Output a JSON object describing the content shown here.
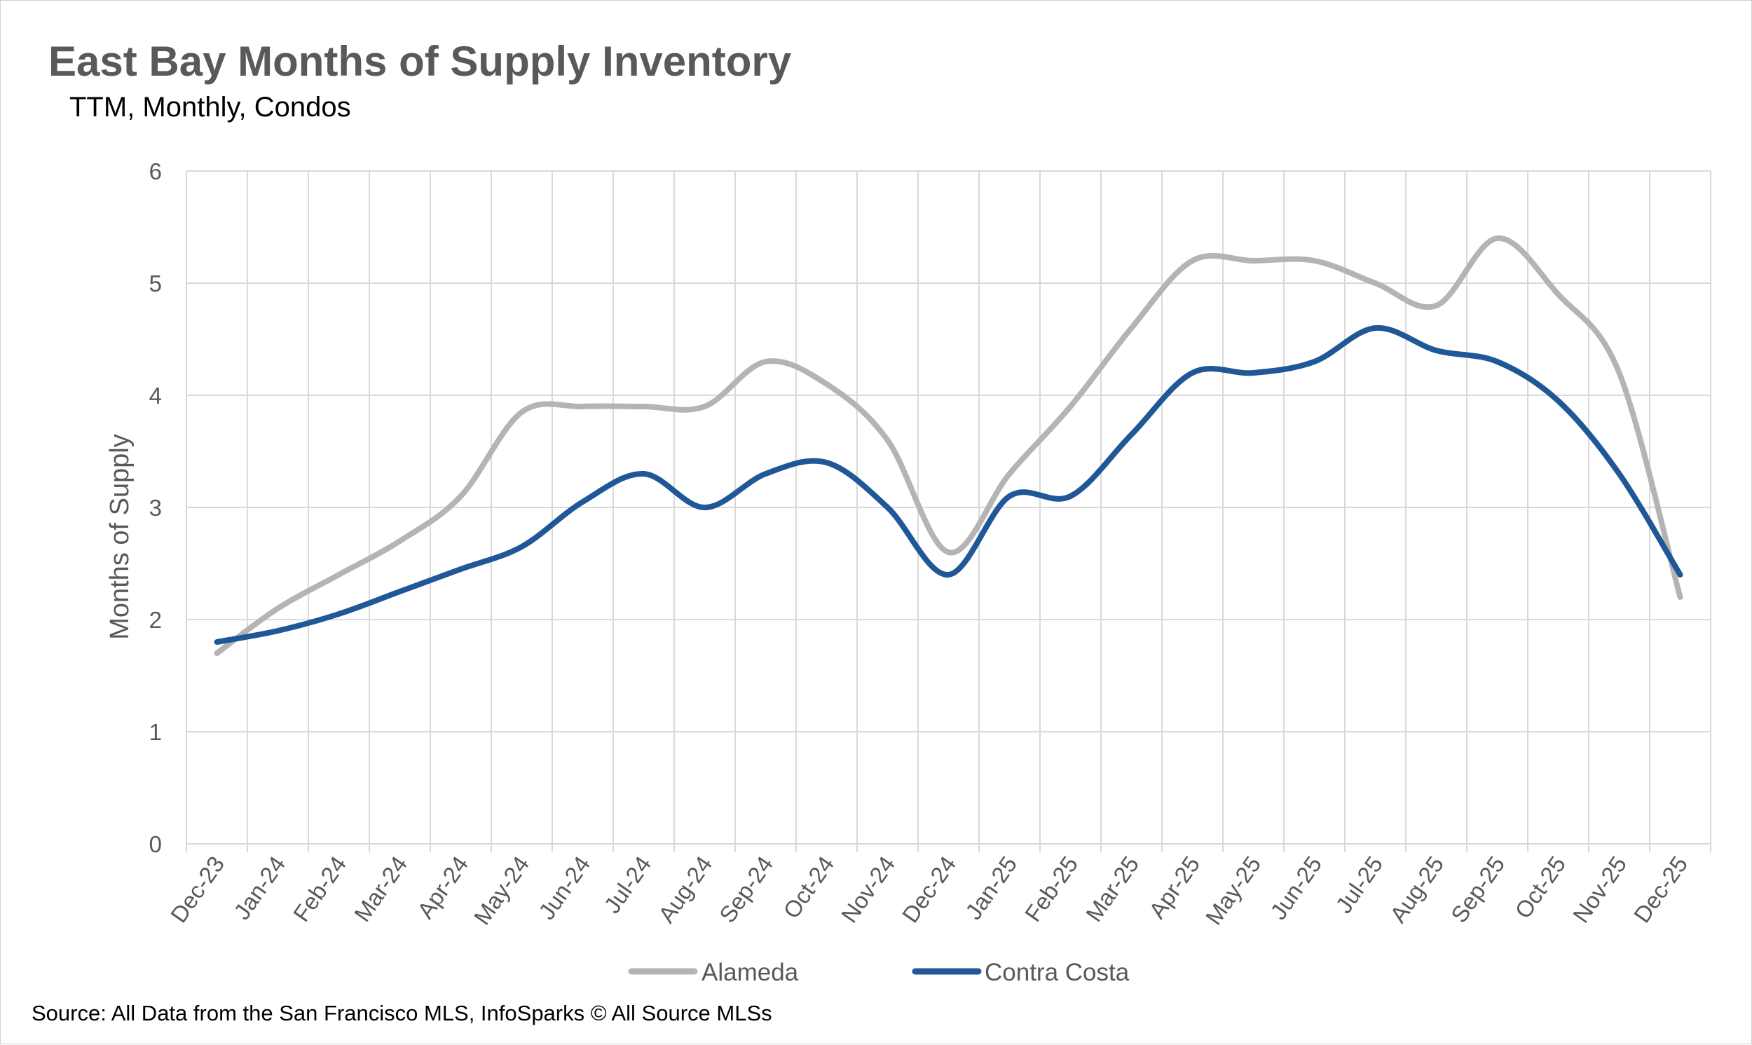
{
  "chart_data": {
    "type": "line",
    "title": "East Bay Months of Supply Inventory",
    "subtitle": "TTM, Monthly, Condos",
    "ylabel": "Months of Supply",
    "xlabel": "",
    "ylim": [
      0,
      6
    ],
    "yticks": [
      "0",
      "1",
      "2",
      "3",
      "4",
      "5",
      "6"
    ],
    "grid": true,
    "legend_position": "bottom",
    "categories": [
      "Dec-23",
      "Jan-24",
      "Feb-24",
      "Mar-24",
      "Apr-24",
      "May-24",
      "Jun-24",
      "Jul-24",
      "Aug-24",
      "Sep-24",
      "Oct-24",
      "Nov-24",
      "Dec-24",
      "Jan-25",
      "Feb-25",
      "Mar-25",
      "Apr-25",
      "May-25",
      "Jun-25",
      "Jul-25",
      "Aug-25",
      "Sep-25",
      "Oct-25",
      "Nov-25",
      "Dec-25"
    ],
    "series": [
      {
        "name": "Alameda",
        "color": "#b4b4b4",
        "values": [
          1.7,
          2.1,
          2.4,
          2.7,
          3.1,
          3.85,
          3.9,
          3.9,
          3.9,
          4.3,
          4.1,
          3.6,
          2.6,
          3.3,
          3.9,
          4.6,
          5.2,
          5.2,
          5.2,
          5.0,
          4.8,
          5.4,
          4.9,
          4.2,
          2.2
        ]
      },
      {
        "name": "Contra Costa",
        "color": "#1f5797",
        "values": [
          1.8,
          1.9,
          2.05,
          2.25,
          2.45,
          2.65,
          3.05,
          3.3,
          3.0,
          3.3,
          3.4,
          3.0,
          2.4,
          3.1,
          3.1,
          3.65,
          4.2,
          4.2,
          4.3,
          4.6,
          4.4,
          4.3,
          3.95,
          3.3,
          2.4
        ]
      }
    ],
    "source": "Source: All Data from the San Francisco MLS, InfoSparks © All Source MLSs"
  }
}
